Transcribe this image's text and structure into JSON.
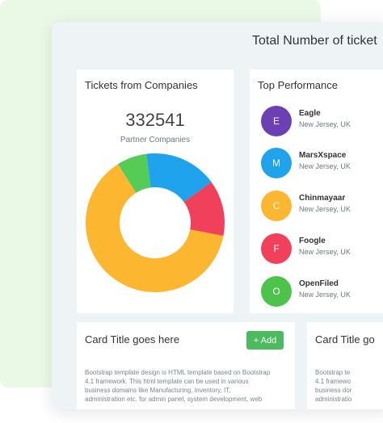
{
  "header": {
    "title": "Total Number of ticket"
  },
  "tickets_card": {
    "title": "Tickets from Companies",
    "total": "332541",
    "subtitle": "Partner Companies"
  },
  "chart_data": {
    "type": "pie",
    "donut": true,
    "slices": [
      {
        "value": 63,
        "color": "#fcb62f"
      },
      {
        "value": 7,
        "color": "#55cc55"
      },
      {
        "value": 17,
        "color": "#1ea3ec"
      },
      {
        "value": 13,
        "color": "#f1405b"
      }
    ]
  },
  "performance_card": {
    "title": "Top Performance",
    "people": [
      {
        "initial": "E",
        "name": "Eagle",
        "location": "New Jersey, UK",
        "color": "#6c3fb5"
      },
      {
        "initial": "M",
        "name": "MarsXspace",
        "location": "New Jersey, UK",
        "color": "#1ea3ec"
      },
      {
        "initial": "C",
        "name": "Chinmayaar",
        "location": "New Jersey, UK",
        "color": "#fcb62f"
      },
      {
        "initial": "F",
        "name": "Foogle",
        "location": "New Jersey, UK",
        "color": "#f1405b"
      },
      {
        "initial": "O",
        "name": "OpenFiled",
        "location": "New Jersey, UK",
        "color": "#4cc44c"
      }
    ]
  },
  "card_a": {
    "title": "Card Title goes here",
    "add_label": "+ Add",
    "lines": [
      "Bootstrap template design is HTML template based on Bootstrap",
      "4.1 framework. This html template can be used in various",
      "business domains like Manufacturing, inventory, IT,",
      "administration etc. for admin panel, system development, web"
    ]
  },
  "card_b": {
    "title": "Card Title go",
    "lines": [
      "Bootstrap te",
      "4.1 framewo",
      "business dor",
      "administratio"
    ]
  }
}
